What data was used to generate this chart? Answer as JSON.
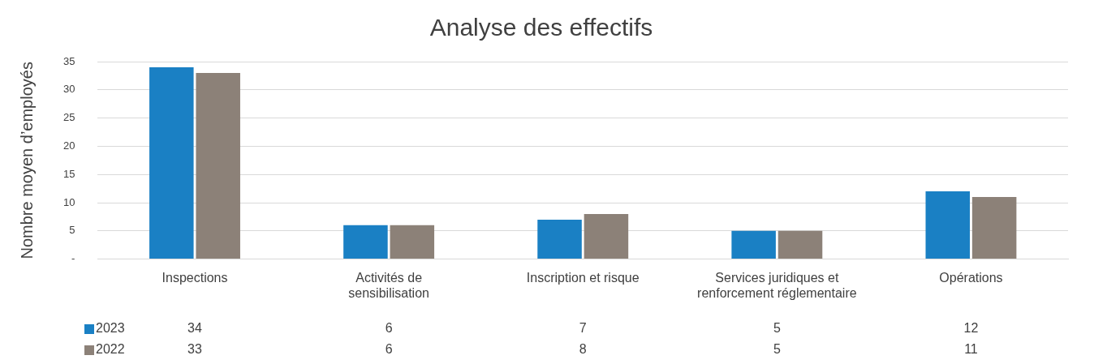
{
  "chart_data": {
    "type": "bar",
    "title": "Analyse des effectifs",
    "ylabel": "Nombre moyen d’employés",
    "categories": [
      "Inspections",
      "Activités de sensibilisation",
      "Inscription et risque",
      "Services juridiques et renforcement réglementaire",
      "Opérations"
    ],
    "series": [
      {
        "name": "2023",
        "color": "#1a80c4",
        "values": [
          34,
          6,
          7,
          5,
          12
        ]
      },
      {
        "name": "2022",
        "color": "#8c8178",
        "values": [
          33,
          6,
          8,
          5,
          11
        ]
      }
    ],
    "ylim": [
      0,
      35
    ],
    "yticks": [
      {
        "value": 0,
        "label": "-"
      },
      5,
      10,
      15,
      20,
      25,
      30,
      35
    ],
    "grid": "y",
    "legend": "bottom",
    "data_labels": true
  }
}
